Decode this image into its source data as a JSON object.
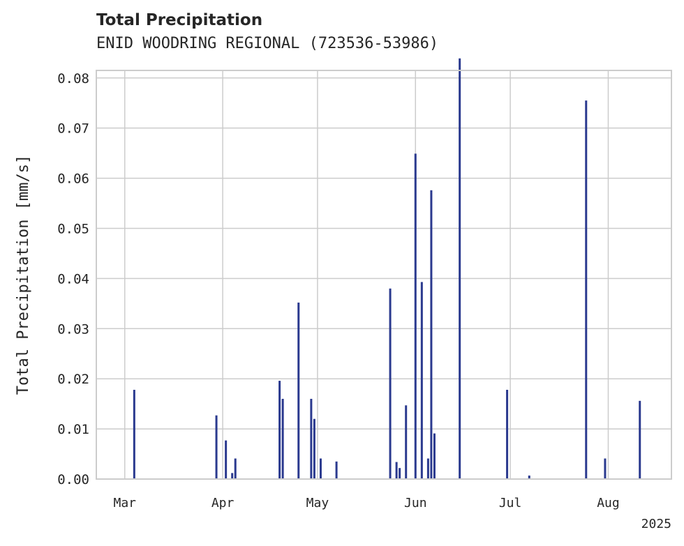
{
  "chart_data": {
    "type": "bar",
    "title": "Total Precipitation",
    "subtitle": "ENID WOODRING REGIONAL (723536-53986)",
    "ylabel": "Total Precipitation [mm/s]",
    "xlabel": "",
    "year_label": "2025",
    "ylim": [
      0,
      0.0815
    ],
    "xlim": [
      "2025-02-20",
      "2025-08-21"
    ],
    "grid": true,
    "y_ticks": [
      0.0,
      0.01,
      0.02,
      0.03,
      0.04,
      0.05,
      0.06,
      0.07,
      0.08
    ],
    "y_tick_labels": [
      "0.00",
      "0.01",
      "0.02",
      "0.03",
      "0.04",
      "0.05",
      "0.06",
      "0.07",
      "0.08"
    ],
    "x_ticks": [
      "2025-03-01",
      "2025-04-01",
      "2025-05-01",
      "2025-06-01",
      "2025-07-01",
      "2025-08-01"
    ],
    "x_tick_labels": [
      "Mar",
      "Apr",
      "May",
      "Jun",
      "Jul",
      "Aug"
    ],
    "bar_color": "#2b3a8f",
    "values": [
      {
        "date": "2025-03-04",
        "value": 0.0178
      },
      {
        "date": "2025-03-30",
        "value": 0.0127
      },
      {
        "date": "2025-04-02",
        "value": 0.0077
      },
      {
        "date": "2025-04-04",
        "value": 0.0012
      },
      {
        "date": "2025-04-05",
        "value": 0.0041
      },
      {
        "date": "2025-04-19",
        "value": 0.0196
      },
      {
        "date": "2025-04-20",
        "value": 0.016
      },
      {
        "date": "2025-04-25",
        "value": 0.0352
      },
      {
        "date": "2025-04-29",
        "value": 0.016
      },
      {
        "date": "2025-04-30",
        "value": 0.012
      },
      {
        "date": "2025-05-02",
        "value": 0.0041
      },
      {
        "date": "2025-05-07",
        "value": 0.0035
      },
      {
        "date": "2025-05-24",
        "value": 0.038
      },
      {
        "date": "2025-05-26",
        "value": 0.0034
      },
      {
        "date": "2025-05-27",
        "value": 0.0022
      },
      {
        "date": "2025-05-29",
        "value": 0.0147
      },
      {
        "date": "2025-06-01",
        "value": 0.0649
      },
      {
        "date": "2025-06-03",
        "value": 0.0393
      },
      {
        "date": "2025-06-05",
        "value": 0.0041
      },
      {
        "date": "2025-06-06",
        "value": 0.0576
      },
      {
        "date": "2025-06-07",
        "value": 0.0091
      },
      {
        "date": "2025-06-15",
        "value": 0.0839
      },
      {
        "date": "2025-06-30",
        "value": 0.0178
      },
      {
        "date": "2025-07-07",
        "value": 0.0007
      },
      {
        "date": "2025-07-25",
        "value": 0.0755
      },
      {
        "date": "2025-07-31",
        "value": 0.0041
      },
      {
        "date": "2025-08-11",
        "value": 0.0156
      }
    ]
  }
}
